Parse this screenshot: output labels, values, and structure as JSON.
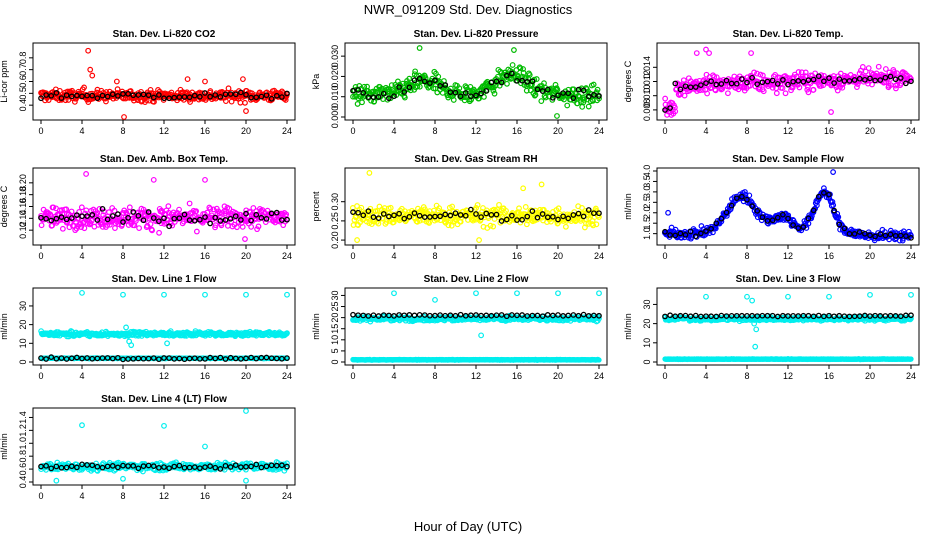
{
  "title": "NWR_091209  Std. Dev. Diagnostics",
  "xlabel": "Hour of Day (UTC)",
  "chart_data": [
    {
      "type": "scatter",
      "title": "Stan. Dev. Li-820 CO2",
      "ylabel": "Li-cor ppm",
      "ylim": [
        0.3,
        0.9
      ],
      "yticks": [
        "0.4",
        "0.5",
        "0.6",
        "0.7",
        "0.8"
      ],
      "xlim": [
        0,
        24
      ],
      "xticks": [
        "0",
        "4",
        "8",
        "12",
        "16",
        "20",
        "24"
      ],
      "color": "#ff0000",
      "base": 0.48,
      "noise": 0.045,
      "shape": "none",
      "outliers": [
        [
          4.6,
          0.86
        ],
        [
          4.2,
          0.55
        ],
        [
          4.8,
          0.7
        ],
        [
          5.0,
          0.65
        ],
        [
          7.4,
          0.6
        ],
        [
          8.1,
          0.3
        ],
        [
          14.3,
          0.62
        ],
        [
          16.0,
          0.6
        ],
        [
          19.7,
          0.62
        ],
        [
          20.0,
          0.35
        ]
      ]
    },
    {
      "type": "scatter",
      "title": "Stan. Dev. Li-820 Pressure",
      "ylabel": "kPa",
      "ylim": [
        0.0,
        0.035
      ],
      "yticks": [
        "0.000",
        "0.010",
        "0.020",
        "0.030"
      ],
      "xlim": [
        0,
        24
      ],
      "xticks": [
        "0",
        "4",
        "8",
        "12",
        "16",
        "20",
        "24"
      ],
      "color": "#00bb00",
      "base": 0.011,
      "noise": 0.0045,
      "shape": "hump2",
      "amp": 0.011,
      "outliers": [
        [
          6.5,
          0.034
        ],
        [
          15.7,
          0.033
        ],
        [
          19.9,
          0.0005
        ]
      ]
    },
    {
      "type": "scatter",
      "title": "Stan. Dev. Li-820 Temp.",
      "ylabel": "degrees C",
      "ylim": [
        0.007,
        0.017
      ],
      "yticks": [
        "0.008",
        "0.010",
        "0.012",
        "0.014"
      ],
      "xlim": [
        0,
        24
      ],
      "xticks": [
        "0",
        "4",
        "8",
        "12",
        "16",
        "20",
        "24"
      ],
      "color": "#ff00ff",
      "base": 0.0113,
      "noise": 0.0012,
      "shape": "rise",
      "amp": 0.0013,
      "outliers": [
        [
          0.2,
          0.0073
        ],
        [
          3.1,
          0.016
        ],
        [
          4.0,
          0.0165
        ],
        [
          4.3,
          0.016
        ],
        [
          8.4,
          0.016
        ],
        [
          16.2,
          0.0077
        ]
      ]
    },
    {
      "type": "scatter",
      "title": "Stan. Dev. Amb. Box Temp.",
      "ylabel": "degrees C",
      "ylim": [
        0.1,
        0.22
      ],
      "yticks": [
        "0.12",
        "0.14",
        "0.16",
        "0.18",
        "0.20"
      ],
      "xlim": [
        0,
        24
      ],
      "xticks": [
        "0",
        "4",
        "8",
        "12",
        "16",
        "20",
        "24"
      ],
      "color": "#ff00ff",
      "base": 0.141,
      "noise": 0.017,
      "shape": "none",
      "outliers": [
        [
          4.4,
          0.215
        ],
        [
          11.0,
          0.205
        ],
        [
          16.0,
          0.205
        ],
        [
          19.9,
          0.105
        ]
      ]
    },
    {
      "type": "scatter",
      "title": "Stan. Dev. Gas Stream RH",
      "ylabel": "percent",
      "ylim": [
        0.195,
        0.38
      ],
      "yticks": [
        "0.20",
        "0.25",
        "0.30"
      ],
      "xlim": [
        0,
        24
      ],
      "xticks": [
        "0",
        "4",
        "8",
        "12",
        "16",
        "20",
        "24"
      ],
      "color": "#ffff00",
      "base": 0.263,
      "noise": 0.024,
      "shape": "none",
      "outliers": [
        [
          1.6,
          0.375
        ],
        [
          18.4,
          0.345
        ],
        [
          16.6,
          0.335
        ],
        [
          0.4,
          0.2
        ],
        [
          12.3,
          0.2
        ]
      ]
    },
    {
      "type": "scatter",
      "title": "Stan. Dev. Sample Flow",
      "ylabel": "ml/min",
      "ylim": [
        0.6,
        4.0
      ],
      "yticks": [
        "1.0",
        "1.5",
        "2.0",
        "2.5",
        "3.0",
        "3.5",
        "4.0"
      ],
      "xlim": [
        0,
        24
      ],
      "xticks": [
        "0",
        "4",
        "8",
        "12",
        "16",
        "20",
        "24"
      ],
      "color": "#0000ff",
      "base": 1.0,
      "noise": 0.22,
      "shape": "flow",
      "amp": 0.0,
      "outliers": [
        [
          16.4,
          3.95
        ],
        [
          0.3,
          2.0
        ]
      ]
    },
    {
      "type": "scatter",
      "title": "Stan. Dev. Line 1 Flow",
      "ylabel": "ml/min",
      "ylim": [
        0,
        38
      ],
      "yticks": [
        "0",
        "10",
        "20",
        "30"
      ],
      "xlim": [
        0,
        24
      ],
      "xticks": [
        "0",
        "4",
        "8",
        "12",
        "16",
        "20",
        "24"
      ],
      "color": "#00eeee",
      "base": 15.0,
      "noise": 1.1,
      "shape": "none",
      "secondLevel": 2.0,
      "outliers": [
        [
          4.0,
          37
        ],
        [
          8.0,
          36
        ],
        [
          12.0,
          36
        ],
        [
          16.0,
          36
        ],
        [
          20.0,
          36
        ],
        [
          24.0,
          36
        ],
        [
          8.6,
          11
        ],
        [
          8.8,
          9
        ],
        [
          12.3,
          10
        ],
        [
          8.3,
          18.5
        ]
      ]
    },
    {
      "type": "scatter",
      "title": "Stan. Dev. Line 2 Flow",
      "ylabel": "ml/min",
      "ylim": [
        0,
        32
      ],
      "yticks": [
        "0",
        "5",
        "10",
        "15",
        "20",
        "25",
        "30"
      ],
      "xlim": [
        0,
        24
      ],
      "xticks": [
        "0",
        "4",
        "8",
        "12",
        "16",
        "20",
        "24"
      ],
      "color": "#00eeee",
      "base": 19.5,
      "noise": 0.9,
      "shape": "none",
      "secondLevel": 1.0,
      "outliers": [
        [
          4.0,
          31
        ],
        [
          8.0,
          28
        ],
        [
          12.0,
          31
        ],
        [
          16.0,
          31
        ],
        [
          20.0,
          31
        ],
        [
          24.0,
          31
        ],
        [
          12.5,
          12
        ]
      ]
    },
    {
      "type": "scatter",
      "title": "Stan. Dev. Line 3 Flow",
      "ylabel": "ml/min",
      "ylim": [
        0,
        37
      ],
      "yticks": [
        "0",
        "10",
        "20",
        "30"
      ],
      "xlim": [
        0,
        24
      ],
      "xticks": [
        "0",
        "4",
        "8",
        "12",
        "16",
        "20",
        "24"
      ],
      "color": "#00eeee",
      "base": 22.5,
      "noise": 0.9,
      "shape": "none",
      "secondLevel": 1.5,
      "outliers": [
        [
          4.0,
          34
        ],
        [
          8.0,
          34
        ],
        [
          12.0,
          34
        ],
        [
          16.0,
          34
        ],
        [
          20.0,
          35
        ],
        [
          24.0,
          35
        ],
        [
          8.7,
          20
        ],
        [
          8.9,
          17
        ],
        [
          8.5,
          32
        ],
        [
          8.8,
          8
        ]
      ]
    },
    {
      "type": "scatter",
      "title": "Stan. Dev. Line 4 (LT) Flow",
      "ylabel": "ml/min",
      "ylim": [
        0.4,
        1.5
      ],
      "yticks": [
        "0.4",
        "0.6",
        "0.8",
        "1.0",
        "1.2",
        "1.4"
      ],
      "xlim": [
        0,
        24
      ],
      "xticks": [
        "0",
        "4",
        "8",
        "12",
        "16",
        "20",
        "24"
      ],
      "color": "#00eeee",
      "base": 0.64,
      "noise": 0.055,
      "shape": "none",
      "outliers": [
        [
          4.0,
          1.28
        ],
        [
          12.0,
          1.27
        ],
        [
          20.0,
          1.5
        ],
        [
          16.0,
          0.95
        ],
        [
          8.0,
          0.45
        ],
        [
          1.5,
          0.42
        ],
        [
          20.0,
          0.42
        ]
      ]
    }
  ]
}
